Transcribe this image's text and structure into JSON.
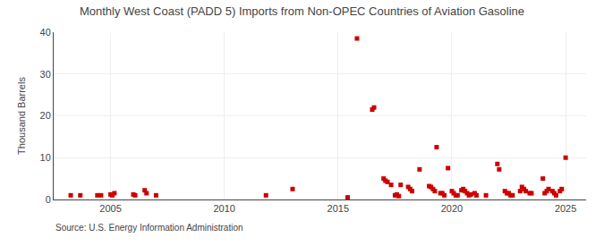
{
  "chart_data": {
    "type": "scatter",
    "title": "Monthly West Coast (PADD 5) Imports from Non-OPEC Countries of Aviation Gasoline",
    "y_label": "Thousand Barrels",
    "annotations": [
      "Source: U.S. Energy Information Administration"
    ],
    "color": "#cc0000",
    "marker": "square",
    "grid": true,
    "xlim": [
      2002.5,
      2025.9
    ],
    "xticks": [
      2005,
      2010,
      2015,
      2020,
      2025
    ],
    "ylim": [
      0,
      40
    ],
    "yticks": [
      0,
      10,
      20,
      30,
      40
    ],
    "x": [
      2003.25,
      2003.67,
      2004.42,
      2004.58,
      2005.0,
      2005.08,
      2005.17,
      2006.0,
      2006.08,
      2006.5,
      2006.58,
      2007.0,
      2011.83,
      2013.0,
      2015.42,
      2015.83,
      2016.5,
      2016.58,
      2017.0,
      2017.08,
      2017.17,
      2017.33,
      2017.5,
      2017.58,
      2017.67,
      2017.75,
      2018.08,
      2018.17,
      2018.25,
      2018.58,
      2019.0,
      2019.08,
      2019.17,
      2019.25,
      2019.33,
      2019.5,
      2019.58,
      2019.67,
      2019.83,
      2020.0,
      2020.08,
      2020.17,
      2020.25,
      2020.42,
      2020.5,
      2020.58,
      2020.67,
      2020.75,
      2020.83,
      2021.0,
      2021.08,
      2021.5,
      2022.0,
      2022.08,
      2022.33,
      2022.42,
      2022.5,
      2022.58,
      2022.67,
      2023.0,
      2023.08,
      2023.17,
      2023.25,
      2023.42,
      2023.5,
      2024.0,
      2024.08,
      2024.17,
      2024.25,
      2024.42,
      2024.5,
      2024.58,
      2024.75,
      2024.83,
      2025.0
    ],
    "values": [
      1.0,
      1.0,
      1.0,
      1.0,
      1.2,
      1.0,
      1.5,
      1.2,
      1.0,
      2.2,
      1.5,
      1.0,
      1.0,
      2.5,
      0.5,
      38.5,
      21.5,
      22.0,
      5.0,
      4.5,
      4.2,
      3.5,
      1.0,
      1.2,
      0.8,
      3.5,
      3.0,
      2.5,
      2.0,
      7.2,
      3.2,
      3.0,
      2.5,
      2.0,
      12.5,
      1.5,
      1.5,
      1.0,
      7.5,
      2.0,
      1.5,
      1.0,
      1.0,
      2.2,
      2.5,
      2.0,
      1.5,
      1.0,
      1.2,
      1.5,
      1.0,
      1.0,
      8.5,
      7.2,
      2.0,
      1.5,
      1.5,
      1.0,
      1.0,
      2.0,
      3.0,
      2.5,
      2.0,
      1.5,
      1.5,
      5.0,
      1.5,
      2.0,
      2.5,
      2.0,
      1.5,
      1.0,
      2.0,
      2.5,
      10.0
    ]
  }
}
